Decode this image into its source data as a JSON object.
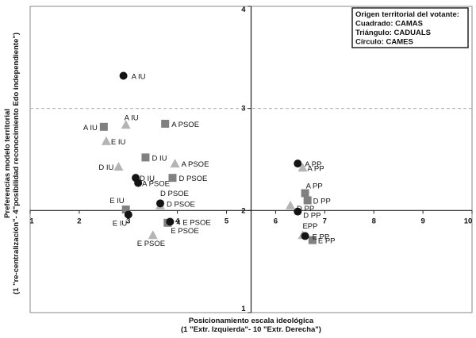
{
  "chart_data": {
    "type": "scatter",
    "title": "",
    "xlabel": [
      "Posicionamiento escala ideológica",
      "(1 \"Extr. Izquierda\"- 10 \"Extr. Derecha\")"
    ],
    "ylabel": [
      "Preferencias modelo territorial",
      "(1 \"re-centralización\"- 4\"posibilidad reconocimiento Edo independiente\")"
    ],
    "xlim": [
      1,
      10
    ],
    "ylim": [
      1,
      4
    ],
    "axes_cross": {
      "x": 5.5,
      "y": 2
    },
    "x_ticks": [
      "1",
      "2",
      "3",
      "4",
      "5",
      "6",
      "7",
      "8",
      "9",
      "10"
    ],
    "y_ticks": [
      "1",
      "2",
      "3",
      "4"
    ],
    "dashed_gridlines_y": [
      3
    ],
    "legend": {
      "placement": "top-right",
      "lines": [
        "Origen territorial del votante:",
        "Cuadrado: CAMAS",
        "Triángulo: CADUALS",
        "Círculo: CAMES"
      ]
    },
    "colors": {
      "square": "#808080",
      "triangle": "#b4b4b4",
      "circle": "#141414"
    },
    "series": [
      {
        "name": "CAMAS",
        "shape": "square",
        "points": [
          {
            "x": 2.5,
            "y": 2.82,
            "label": "A IU"
          },
          {
            "x": 3.75,
            "y": 2.85,
            "label": "A PSOE"
          },
          {
            "x": 3.35,
            "y": 2.52,
            "label": "D IU"
          },
          {
            "x": 3.9,
            "y": 2.32,
            "label": "D PSOE"
          },
          {
            "x": 2.95,
            "y": 2.01,
            "label": "E IU"
          },
          {
            "x": 3.8,
            "y": 1.88,
            "label": "E PSOE"
          },
          {
            "x": 6.6,
            "y": 2.17,
            "label": "A PP"
          },
          {
            "x": 6.65,
            "y": 2.1,
            "label": "D PP"
          },
          {
            "x": 6.75,
            "y": 1.71,
            "label": "E PP"
          }
        ]
      },
      {
        "name": "CADUALS",
        "shape": "triangle",
        "points": [
          {
            "x": 2.95,
            "y": 2.84,
            "label": "A IU"
          },
          {
            "x": 2.55,
            "y": 2.68,
            "label": "E IU"
          },
          {
            "x": 2.8,
            "y": 2.43,
            "label": "D IU"
          },
          {
            "x": 3.95,
            "y": 2.46,
            "label": "A PSOE"
          },
          {
            "x": 3.65,
            "y": 2.05,
            "label": "D PSOE"
          },
          {
            "x": 3.5,
            "y": 1.76,
            "label": "E PSOE"
          },
          {
            "x": 6.55,
            "y": 2.42,
            "label": "A PP"
          },
          {
            "x": 6.3,
            "y": 2.05,
            "label": "D PP"
          },
          {
            "x": 6.55,
            "y": 1.76,
            "label": "EPP"
          }
        ]
      },
      {
        "name": "CAMES",
        "shape": "circle",
        "points": [
          {
            "x": 2.9,
            "y": 3.32,
            "label": "A IU"
          },
          {
            "x": 3.15,
            "y": 2.32,
            "label": "D IU"
          },
          {
            "x": 3.2,
            "y": 2.27,
            "label": "A PSOE"
          },
          {
            "x": 3.65,
            "y": 2.07,
            "label": "D PSOE"
          },
          {
            "x": 3.0,
            "y": 1.96,
            "label": "E IU"
          },
          {
            "x": 3.85,
            "y": 1.89,
            "label": "E PSOE"
          },
          {
            "x": 6.45,
            "y": 2.46,
            "label": "A PP"
          },
          {
            "x": 6.45,
            "y": 1.99,
            "label": "D PP"
          },
          {
            "x": 6.6,
            "y": 1.75,
            "label": "E PP"
          }
        ]
      }
    ],
    "label_offsets_note": "",
    "label_display": [
      {
        "series": 0,
        "i": 0,
        "text": "A IU"
      },
      {
        "series": 0,
        "i": 1,
        "text": "A PSOE"
      },
      {
        "series": 0,
        "i": 2,
        "text": "D IU"
      },
      {
        "series": 0,
        "i": 3,
        "text": "D PSOE"
      },
      {
        "series": 0,
        "i": 4,
        "text": "E IU"
      },
      {
        "series": 0,
        "i": 5,
        "text": "E PSOE"
      },
      {
        "series": 0,
        "i": 6,
        "text": "A PP"
      },
      {
        "series": 0,
        "i": 7,
        "text": "D PP"
      },
      {
        "series": 0,
        "i": 8,
        "text": "E PP"
      },
      {
        "series": 1,
        "i": 0,
        "text": "A IU"
      },
      {
        "series": 1,
        "i": 1,
        "text": "E IU"
      },
      {
        "series": 1,
        "i": 2,
        "text": "D IU"
      },
      {
        "series": 1,
        "i": 3,
        "text": "A PSOE"
      },
      {
        "series": 1,
        "i": 4,
        "text": "D PSOE"
      },
      {
        "series": 1,
        "i": 5,
        "text": "E PSOE"
      },
      {
        "series": 1,
        "i": 6,
        "text": "A PP"
      },
      {
        "series": 1,
        "i": 7,
        "text": "D PP"
      },
      {
        "series": 1,
        "i": 8,
        "text": "EPP"
      },
      {
        "series": 2,
        "i": 0,
        "text": "A IU"
      },
      {
        "series": 2,
        "i": 1,
        "text": "D IU"
      },
      {
        "series": 2,
        "i": 2,
        "text": "A PSOE"
      },
      {
        "series": 2,
        "i": 3,
        "text": "D PSOE"
      },
      {
        "series": 2,
        "i": 4,
        "text": "E IU"
      },
      {
        "series": 2,
        "i": 5,
        "text": "4 E PSOE"
      },
      {
        "series": 2,
        "i": 6,
        "text": "A PP"
      },
      {
        "series": 2,
        "i": 7,
        "text": "D PP"
      },
      {
        "series": 2,
        "i": 8,
        "text": "E PP"
      }
    ]
  }
}
